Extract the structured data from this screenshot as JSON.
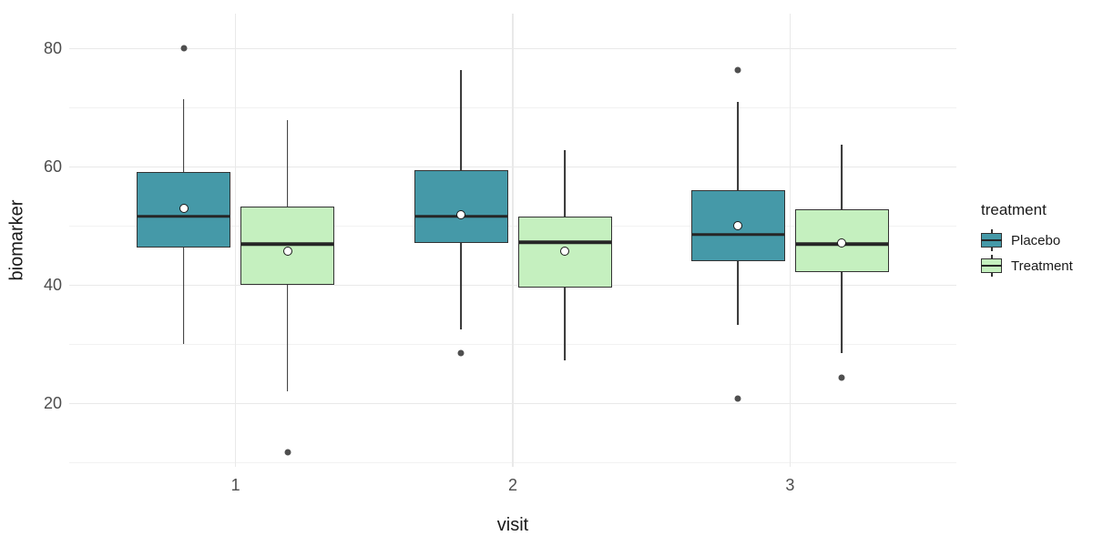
{
  "chart_data": {
    "type": "boxplot",
    "title": "",
    "xlabel": "visit",
    "ylabel": "biomarker",
    "categories": [
      "1",
      "2",
      "3"
    ],
    "ylim": [
      9.3,
      85.9
    ],
    "y_ticks_major": [
      20,
      40,
      60,
      80
    ],
    "y_ticks_minor": [
      10,
      30,
      50,
      70
    ],
    "grid": "major-and-minor-horizontal, major-vertical-at-categories",
    "legend": {
      "title": "treatment",
      "position": "right",
      "items": [
        {
          "label": "Placebo",
          "color": "#4599a8"
        },
        {
          "label": "Treatment",
          "color": "#c5f0bf"
        }
      ]
    },
    "series": [
      {
        "name": "Placebo",
        "fill": "#4599a8",
        "boxes": [
          {
            "category": "1",
            "whisker_low": 30.0,
            "q1": 46.3,
            "median": 51.8,
            "q3": 59.2,
            "whisker_high": 71.4,
            "mean": 53.0,
            "outliers": [
              80.0
            ]
          },
          {
            "category": "2",
            "whisker_low": 32.5,
            "q1": 47.2,
            "median": 51.8,
            "q3": 59.5,
            "whisker_high": 76.3,
            "mean": 51.9,
            "outliers": [
              28.5
            ]
          },
          {
            "category": "3",
            "whisker_low": 33.3,
            "q1": 44.1,
            "median": 48.7,
            "q3": 56.0,
            "whisker_high": 71.0,
            "mean": 50.0,
            "outliers": [
              76.3,
              20.9
            ]
          }
        ]
      },
      {
        "name": "Treatment",
        "fill": "#c5f0bf",
        "boxes": [
          {
            "category": "1",
            "whisker_low": 22.0,
            "q1": 40.1,
            "median": 47.1,
            "q3": 53.3,
            "whisker_high": 67.9,
            "mean": 45.8,
            "outliers": [
              11.8
            ]
          },
          {
            "category": "2",
            "whisker_low": 27.3,
            "q1": 39.6,
            "median": 47.4,
            "q3": 51.6,
            "whisker_high": 62.8,
            "mean": 45.7,
            "outliers": []
          },
          {
            "category": "3",
            "whisker_low": 28.5,
            "q1": 42.2,
            "median": 47.1,
            "q3": 52.9,
            "whisker_high": 63.8,
            "mean": 47.2,
            "outliers": [
              24.4
            ]
          }
        ]
      }
    ],
    "colors": {
      "box_border": "#333333",
      "median": "#262626",
      "whisker": "#333333",
      "outlier": "#4f4f4f",
      "mean_fill": "#ffffff",
      "mean_border": "#1a1a1a",
      "grid_major": "#e9e9e9",
      "grid_minor": "#f2f2f2",
      "tick_text": "#4d4d4d",
      "title_text": "#1a1a1a",
      "background": "#ffffff"
    }
  }
}
